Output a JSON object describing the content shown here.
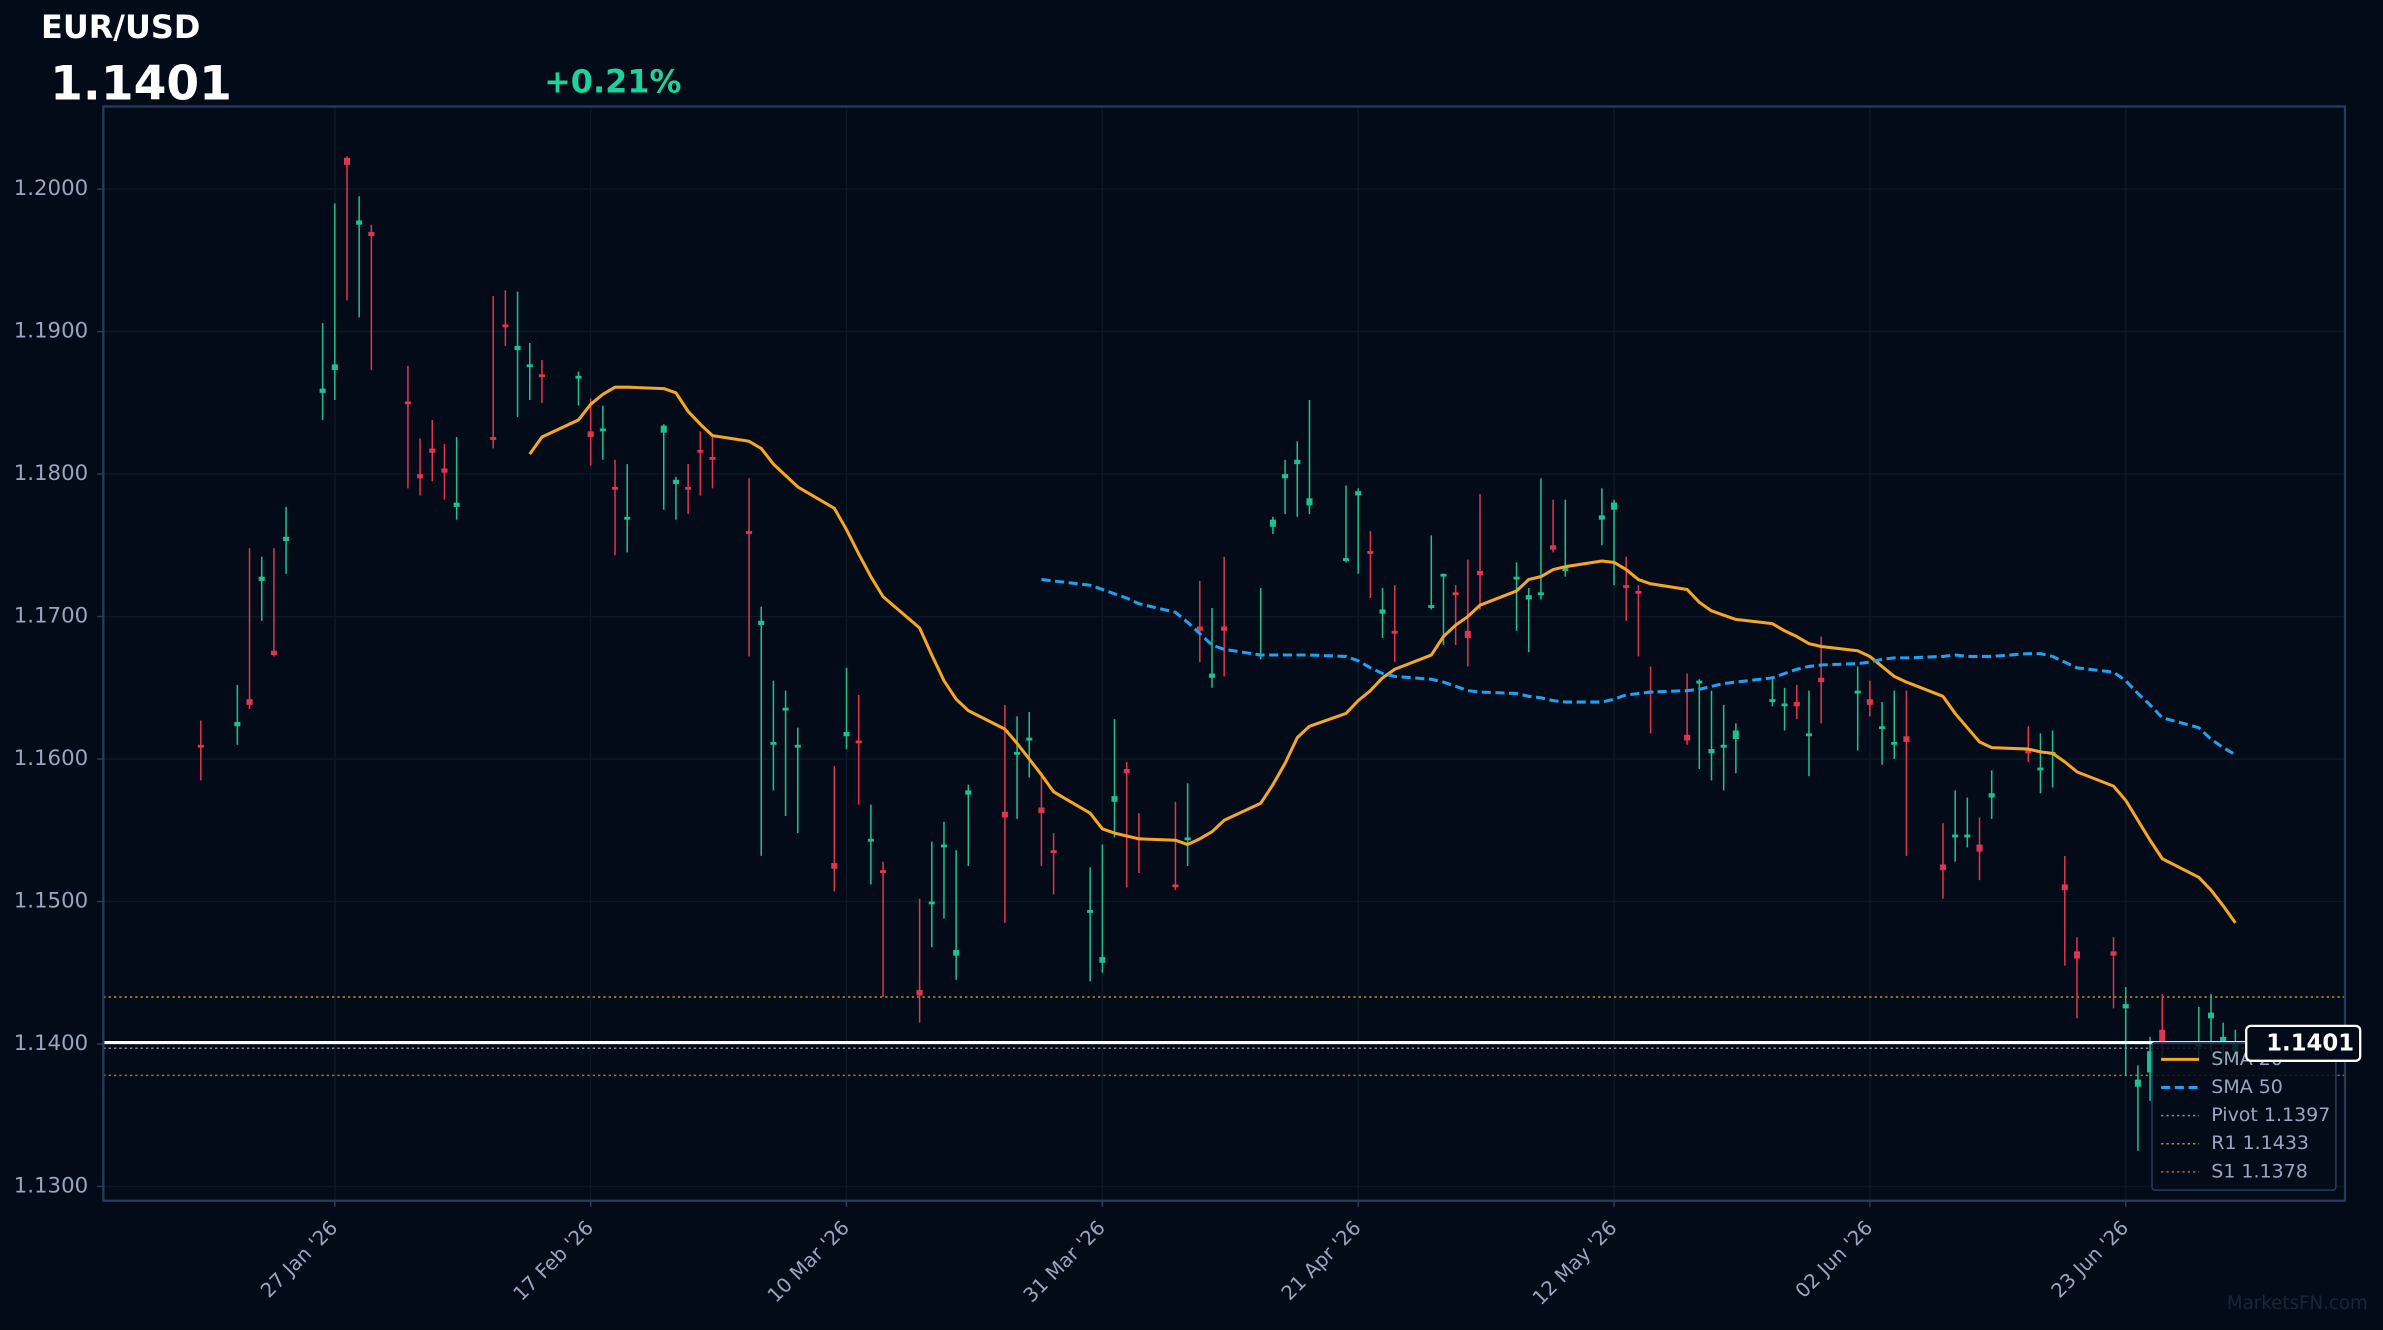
{
  "chart_data": {
    "type": "candlestick",
    "title": "EUR/USD",
    "price": 1.1401,
    "change": "+0.21%",
    "watermark": "MarketsFN.com",
    "up_color": "#1fbf8f",
    "down_color": "#e0354f",
    "price_color": "#ffffff",
    "change_color": "#1fd19a",
    "grid": true,
    "legend": "lower right",
    "ylim": [
      1.129,
      1.2058
    ],
    "yticks": [
      {
        "value": 1.13,
        "label": "1.1300"
      },
      {
        "value": 1.14,
        "label": "1.1400"
      },
      {
        "value": 1.15,
        "label": "1.1500"
      },
      {
        "value": 1.16,
        "label": "1.1600"
      },
      {
        "value": 1.17,
        "label": "1.1700"
      },
      {
        "value": 1.18,
        "label": "1.1800"
      },
      {
        "value": 1.19,
        "label": "1.1900"
      },
      {
        "value": 1.2,
        "label": "1.2000"
      }
    ],
    "xlim": [
      "2026-01-08",
      "2026-07-11"
    ],
    "xticks": [
      {
        "value": "2026-01-27",
        "label": "27 Jan '26"
      },
      {
        "value": "2026-02-17",
        "label": "17 Feb '26"
      },
      {
        "value": "2026-03-10",
        "label": "10 Mar '26"
      },
      {
        "value": "2026-03-31",
        "label": "31 Mar '26"
      },
      {
        "value": "2026-04-21",
        "label": "21 Apr '26"
      },
      {
        "value": "2026-05-12",
        "label": "12 May '26"
      },
      {
        "value": "2026-06-02",
        "label": "02 Jun '26"
      },
      {
        "value": "2026-06-23",
        "label": "23 Jun '26"
      }
    ],
    "x": [
      "2026-01-16",
      "2026-01-19",
      "2026-01-20",
      "2026-01-21",
      "2026-01-22",
      "2026-01-23",
      "2026-01-26",
      "2026-01-27",
      "2026-01-28",
      "2026-01-29",
      "2026-01-30",
      "2026-02-02",
      "2026-02-03",
      "2026-02-04",
      "2026-02-05",
      "2026-02-06",
      "2026-02-09",
      "2026-02-10",
      "2026-02-11",
      "2026-02-12",
      "2026-02-13",
      "2026-02-16",
      "2026-02-17",
      "2026-02-18",
      "2026-02-19",
      "2026-02-20",
      "2026-02-23",
      "2026-02-24",
      "2026-02-25",
      "2026-02-26",
      "2026-02-27",
      "2026-03-02",
      "2026-03-03",
      "2026-03-04",
      "2026-03-05",
      "2026-03-06",
      "2026-03-09",
      "2026-03-10",
      "2026-03-11",
      "2026-03-12",
      "2026-03-13",
      "2026-03-16",
      "2026-03-17",
      "2026-03-18",
      "2026-03-19",
      "2026-03-20",
      "2026-03-23",
      "2026-03-24",
      "2026-03-25",
      "2026-03-26",
      "2026-03-27",
      "2026-03-30",
      "2026-03-31",
      "2026-04-01",
      "2026-04-02",
      "2026-04-03",
      "2026-04-06",
      "2026-04-07",
      "2026-04-08",
      "2026-04-09",
      "2026-04-10",
      "2026-04-13",
      "2026-04-14",
      "2026-04-15",
      "2026-04-16",
      "2026-04-17",
      "2026-04-20",
      "2026-04-21",
      "2026-04-22",
      "2026-04-23",
      "2026-04-24",
      "2026-04-27",
      "2026-04-28",
      "2026-04-29",
      "2026-04-30",
      "2026-05-01",
      "2026-05-04",
      "2026-05-05",
      "2026-05-06",
      "2026-05-07",
      "2026-05-08",
      "2026-05-11",
      "2026-05-12",
      "2026-05-13",
      "2026-05-14",
      "2026-05-15",
      "2026-05-18",
      "2026-05-19",
      "2026-05-20",
      "2026-05-21",
      "2026-05-22",
      "2026-05-25",
      "2026-05-26",
      "2026-05-27",
      "2026-05-28",
      "2026-05-29",
      "2026-06-01",
      "2026-06-02",
      "2026-06-03",
      "2026-06-04",
      "2026-06-05",
      "2026-06-08",
      "2026-06-09",
      "2026-06-10",
      "2026-06-11",
      "2026-06-12",
      "2026-06-15",
      "2026-06-16",
      "2026-06-17",
      "2026-06-18",
      "2026-06-19",
      "2026-06-22",
      "2026-06-23",
      "2026-06-24",
      "2026-06-25",
      "2026-06-26",
      "2026-06-29",
      "2026-06-30",
      "2026-07-01",
      "2026-07-02"
    ],
    "open": [
      1.161,
      1.1623,
      1.1642,
      1.1725,
      1.1676,
      1.1753,
      1.1857,
      1.1873,
      1.2022,
      1.1975,
      1.197,
      1.1851,
      1.18,
      1.1818,
      1.1804,
      1.1777,
      1.1826,
      1.1905,
      1.1887,
      1.1875,
      1.187,
      1.1867,
      1.183,
      1.183,
      1.1791,
      1.1768,
      1.1829,
      1.1793,
      1.1791,
      1.1817,
      1.1812,
      1.176,
      1.1694,
      1.161,
      1.1634,
      1.1608,
      1.1527,
      1.1616,
      1.1613,
      1.1542,
      1.1522,
      1.1438,
      1.1498,
      1.1538,
      1.1462,
      1.1575,
      1.1563,
      1.1603,
      1.1613,
      1.1566,
      1.1536,
      1.1492,
      1.1457,
      1.157,
      1.1593,
      1.1545,
      1.1512,
      1.1543,
      1.1693,
      1.1657,
      1.1693,
      1.1672,
      1.1763,
      1.1797,
      1.1807,
      1.1778,
      1.1739,
      1.1785,
      1.1746,
      1.1702,
      1.169,
      1.1706,
      1.1728,
      1.1717,
      1.169,
      1.1732,
      1.1726,
      1.1712,
      1.1715,
      1.175,
      1.1732,
      1.1768,
      1.1775,
      1.1722,
      1.1718,
      1.1648,
      1.1617,
      1.1653,
      1.1604,
      1.1608,
      1.1614,
      1.164,
      1.1637,
      1.164,
      1.1616,
      1.1657,
      1.1646,
      1.1642,
      1.1621,
      1.161,
      1.1616,
      1.1526,
      1.1545,
      1.1545,
      1.154,
      1.1573,
      1.1606,
      1.1592,
      1.1603,
      1.1512,
      1.1465,
      1.1465,
      1.1425,
      1.137,
      1.138,
      1.141,
      1.1398,
      1.1418,
      1.14,
      1.1395
    ],
    "high": [
      1.1627,
      1.1652,
      1.1748,
      1.1742,
      1.1748,
      1.1777,
      1.1906,
      1.199,
      1.2023,
      1.1995,
      1.1975,
      1.1876,
      1.1825,
      1.1838,
      1.1821,
      1.1826,
      1.1925,
      1.1929,
      1.1928,
      1.1892,
      1.188,
      1.1872,
      1.1853,
      1.1848,
      1.181,
      1.1807,
      1.1835,
      1.1798,
      1.1807,
      1.183,
      1.1828,
      1.1797,
      1.1707,
      1.1655,
      1.1648,
      1.1622,
      1.1595,
      1.1664,
      1.1645,
      1.1568,
      1.1528,
      1.1502,
      1.1542,
      1.1556,
      1.1536,
      1.1582,
      1.1638,
      1.163,
      1.1633,
      1.1588,
      1.1548,
      1.1524,
      1.154,
      1.1628,
      1.1598,
      1.1562,
      1.157,
      1.1583,
      1.1725,
      1.1706,
      1.1742,
      1.172,
      1.177,
      1.181,
      1.1823,
      1.1852,
      1.1792,
      1.179,
      1.176,
      1.172,
      1.1722,
      1.1757,
      1.173,
      1.1722,
      1.174,
      1.1786,
      1.1738,
      1.172,
      1.1797,
      1.1782,
      1.1782,
      1.179,
      1.1782,
      1.1742,
      1.1722,
      1.1665,
      1.166,
      1.1656,
      1.1648,
      1.1638,
      1.1625,
      1.1656,
      1.165,
      1.1652,
      1.1648,
      1.1686,
      1.1665,
      1.1655,
      1.164,
      1.1648,
      1.1648,
      1.1555,
      1.1578,
      1.1573,
      1.1559,
      1.1592,
      1.1623,
      1.1618,
      1.162,
      1.1532,
      1.1475,
      1.1475,
      1.144,
      1.1385,
      1.1405,
      1.1435,
      1.1426,
      1.1435,
      1.1415,
      1.141
    ],
    "low": [
      1.1585,
      1.161,
      1.1635,
      1.1697,
      1.1672,
      1.173,
      1.1838,
      1.1852,
      1.1922,
      1.191,
      1.1873,
      1.179,
      1.1785,
      1.1795,
      1.1782,
      1.1768,
      1.1818,
      1.189,
      1.184,
      1.1852,
      1.185,
      1.1848,
      1.1806,
      1.181,
      1.1743,
      1.1745,
      1.1775,
      1.1768,
      1.1772,
      1.1785,
      1.179,
      1.1672,
      1.1532,
      1.1578,
      1.156,
      1.1548,
      1.1507,
      1.1607,
      1.1568,
      1.1512,
      1.1433,
      1.1415,
      1.1468,
      1.1488,
      1.1445,
      1.1525,
      1.1485,
      1.1558,
      1.1587,
      1.1525,
      1.1505,
      1.1444,
      1.145,
      1.1545,
      1.151,
      1.152,
      1.1508,
      1.1525,
      1.1668,
      1.165,
      1.1658,
      1.167,
      1.1758,
      1.1772,
      1.177,
      1.1772,
      1.1738,
      1.173,
      1.1713,
      1.1685,
      1.1668,
      1.1705,
      1.168,
      1.168,
      1.1665,
      1.1705,
      1.169,
      1.1675,
      1.1712,
      1.1745,
      1.1728,
      1.175,
      1.1722,
      1.1697,
      1.1672,
      1.1618,
      1.161,
      1.1593,
      1.1585,
      1.1578,
      1.159,
      1.1637,
      1.162,
      1.1628,
      1.1588,
      1.1625,
      1.1606,
      1.163,
      1.1596,
      1.16,
      1.1532,
      1.1502,
      1.1528,
      1.1538,
      1.1515,
      1.1558,
      1.1598,
      1.1576,
      1.158,
      1.1455,
      1.1418,
      1.1425,
      1.1378,
      1.1325,
      1.136,
      1.139,
      1.139,
      1.1395,
      1.1388,
      1.1385
    ],
    "close": [
      1.1608,
      1.1626,
      1.1638,
      1.1728,
      1.1673,
      1.1756,
      1.186,
      1.1877,
      1.2017,
      1.1978,
      1.1967,
      1.1849,
      1.1797,
      1.1815,
      1.1801,
      1.178,
      1.1824,
      1.1903,
      1.189,
      1.1877,
      1.1868,
      1.1869,
      1.1826,
      1.1832,
      1.1789,
      1.177,
      1.1834,
      1.1796,
      1.1789,
      1.1815,
      1.181,
      1.1758,
      1.1697,
      1.1612,
      1.1636,
      1.161,
      1.1523,
      1.1619,
      1.1611,
      1.1544,
      1.152,
      1.1434,
      1.15,
      1.154,
      1.1466,
      1.1578,
      1.1559,
      1.1605,
      1.1615,
      1.1562,
      1.1534,
      1.1494,
      1.1461,
      1.1574,
      1.159,
      1.1543,
      1.151,
      1.1545,
      1.169,
      1.166,
      1.169,
      1.1674,
      1.1768,
      1.18,
      1.181,
      1.1783,
      1.1741,
      1.1788,
      1.1744,
      1.1705,
      1.1688,
      1.1708,
      1.173,
      1.1715,
      1.1685,
      1.1729,
      1.1728,
      1.1715,
      1.1717,
      1.1747,
      1.1734,
      1.1771,
      1.178,
      1.172,
      1.1716,
      1.1646,
      1.1613,
      1.1655,
      1.1607,
      1.161,
      1.162,
      1.1642,
      1.1639,
      1.1637,
      1.1618,
      1.1654,
      1.1648,
      1.1638,
      1.1623,
      1.1612,
      1.1612,
      1.1522,
      1.1547,
      1.1547,
      1.1535,
      1.1576,
      1.1604,
      1.1594,
      1.1605,
      1.1508,
      1.146,
      1.1462,
      1.1428,
      1.1375,
      1.1395,
      1.14,
      1.1402,
      1.1422,
      1.1405,
      1.1401
    ],
    "series": [
      {
        "name": "SMA 20",
        "color": "#f5a623",
        "dashed": false,
        "values": [
          null,
          null,
          null,
          null,
          null,
          null,
          null,
          null,
          null,
          null,
          null,
          null,
          null,
          null,
          null,
          null,
          null,
          null,
          null,
          1.1814,
          1.1826,
          1.1838,
          1.1849,
          1.1856,
          1.1861,
          1.1861,
          1.186,
          1.1857,
          1.1844,
          1.1835,
          1.1827,
          1.1823,
          1.1818,
          1.1807,
          1.1799,
          1.1791,
          1.1776,
          1.1761,
          1.1744,
          1.1728,
          1.1714,
          1.1692,
          1.1673,
          1.1655,
          1.1642,
          1.1634,
          1.1621,
          1.1611,
          1.16,
          1.1589,
          1.1577,
          1.1562,
          1.1551,
          1.1548,
          1.1546,
          1.1544,
          1.1543,
          1.154,
          1.1544,
          1.1549,
          1.1557,
          1.1569,
          1.1582,
          1.1597,
          1.1615,
          1.1623,
          1.1632,
          1.1641,
          1.1648,
          1.1657,
          1.1663,
          1.1673,
          1.1686,
          1.1694,
          1.17,
          1.1708,
          1.1718,
          1.1726,
          1.1728,
          1.1733,
          1.1735,
          1.1739,
          1.1738,
          1.1733,
          1.1726,
          1.1723,
          1.1719,
          1.171,
          1.1704,
          1.1701,
          1.1698,
          1.1695,
          1.169,
          1.1686,
          1.1681,
          1.1679,
          1.1676,
          1.1672,
          1.1665,
          1.1658,
          1.1654,
          1.1644,
          1.1632,
          1.1622,
          1.1612,
          1.1608,
          1.1607,
          1.1605,
          1.1604,
          1.1598,
          1.1591,
          1.1581,
          1.1571,
          1.1557,
          1.1543,
          1.153,
          1.1517,
          1.1508,
          1.1497,
          1.1485
        ]
      },
      {
        "name": "SMA 50",
        "color": "#1fa0f0",
        "dashed": true,
        "values": [
          null,
          null,
          null,
          null,
          null,
          null,
          null,
          null,
          null,
          null,
          null,
          null,
          null,
          null,
          null,
          null,
          null,
          null,
          null,
          null,
          null,
          null,
          null,
          null,
          null,
          null,
          null,
          null,
          null,
          null,
          null,
          null,
          null,
          null,
          null,
          null,
          null,
          null,
          null,
          null,
          null,
          null,
          null,
          null,
          null,
          null,
          null,
          null,
          null,
          1.1726,
          1.1725,
          1.1722,
          1.1719,
          1.1716,
          1.1713,
          1.1709,
          1.1703,
          1.1696,
          1.1688,
          1.168,
          1.1677,
          1.1673,
          1.1673,
          1.1673,
          1.1673,
          1.1673,
          1.1672,
          1.1669,
          1.1664,
          1.166,
          1.1658,
          1.1656,
          1.1654,
          1.1651,
          1.1648,
          1.1647,
          1.1646,
          1.1644,
          1.1643,
          1.1641,
          1.164,
          1.164,
          1.1642,
          1.1645,
          1.1646,
          1.1647,
          1.1648,
          1.1649,
          1.1651,
          1.1653,
          1.1654,
          1.1657,
          1.166,
          1.1663,
          1.1665,
          1.1666,
          1.1667,
          1.1668,
          1.167,
          1.1671,
          1.1671,
          1.1672,
          1.1673,
          1.1672,
          1.1672,
          1.1672,
          1.1674,
          1.1674,
          1.1672,
          1.1668,
          1.1664,
          1.1661,
          1.1655,
          1.1646,
          1.1638,
          1.1629,
          1.1622,
          1.1614,
          1.1608,
          1.1603
        ]
      }
    ],
    "levels": [
      {
        "name": "Pivot 1.1397",
        "value": 1.1397,
        "color": "#8a8f9c"
      },
      {
        "name": "R1 1.1433",
        "value": 1.1433,
        "color": "#b8962a"
      },
      {
        "name": "S1 1.1378",
        "value": 1.1378,
        "color": "#a0704a"
      }
    ]
  }
}
